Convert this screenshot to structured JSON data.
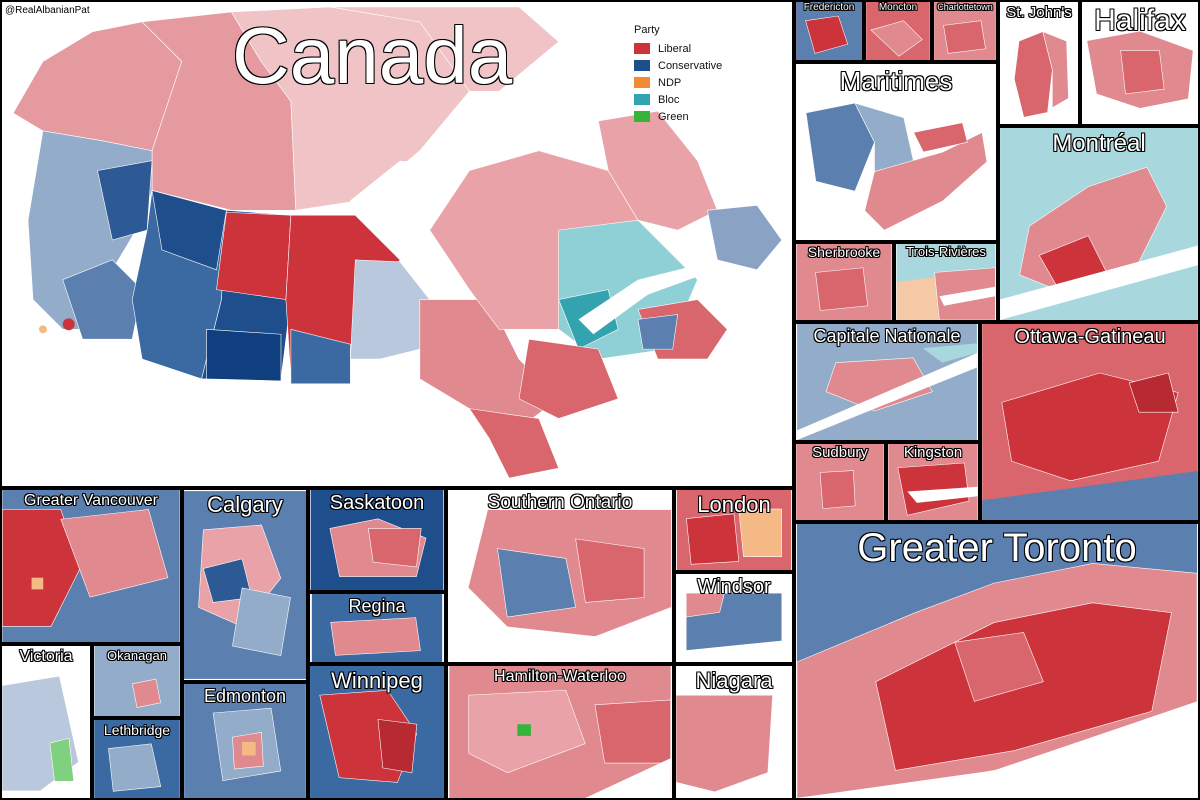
{
  "credit": "@RealAlbanianPat",
  "main_title": "Canada",
  "legend": {
    "title": "Party",
    "items": [
      {
        "label": "Liberal",
        "color": "#cc333a"
      },
      {
        "label": "Conservative",
        "color": "#1f4e8c"
      },
      {
        "label": "NDP",
        "color": "#f08a34"
      },
      {
        "label": "Bloc",
        "color": "#33a3b0"
      },
      {
        "label": "Green",
        "color": "#36b43a"
      }
    ]
  },
  "panels": {
    "fredericton": "Fredericton",
    "moncton": "Moncton",
    "charlottetown": "Charlottetown",
    "st_johns": "St. John's",
    "halifax": "Halifax",
    "maritimes": "Maritimes",
    "montreal": "Montréal",
    "sherbrooke": "Sherbrooke",
    "trois_rivieres": "Trois-Rivières",
    "capitale_nationale": "Capitale Nationale",
    "ottawa_gatineau": "Ottawa-Gatineau",
    "sudbury": "Sudbury",
    "kingston": "Kingston",
    "greater_vancouver": "Greater Vancouver",
    "calgary": "Calgary",
    "saskatoon": "Saskatoon",
    "southern_ontario": "Southern Ontario",
    "london": "London",
    "regina": "Regina",
    "windsor": "Windsor",
    "greater_toronto": "Greater Toronto",
    "victoria": "Victoria",
    "okanagan": "Okanagan",
    "edmonton": "Edmonton",
    "winnipeg": "Winnipeg",
    "hamilton_waterloo": "Hamilton-Waterloo",
    "niagara": "Niagara",
    "lethbridge": "Lethbridge"
  }
}
